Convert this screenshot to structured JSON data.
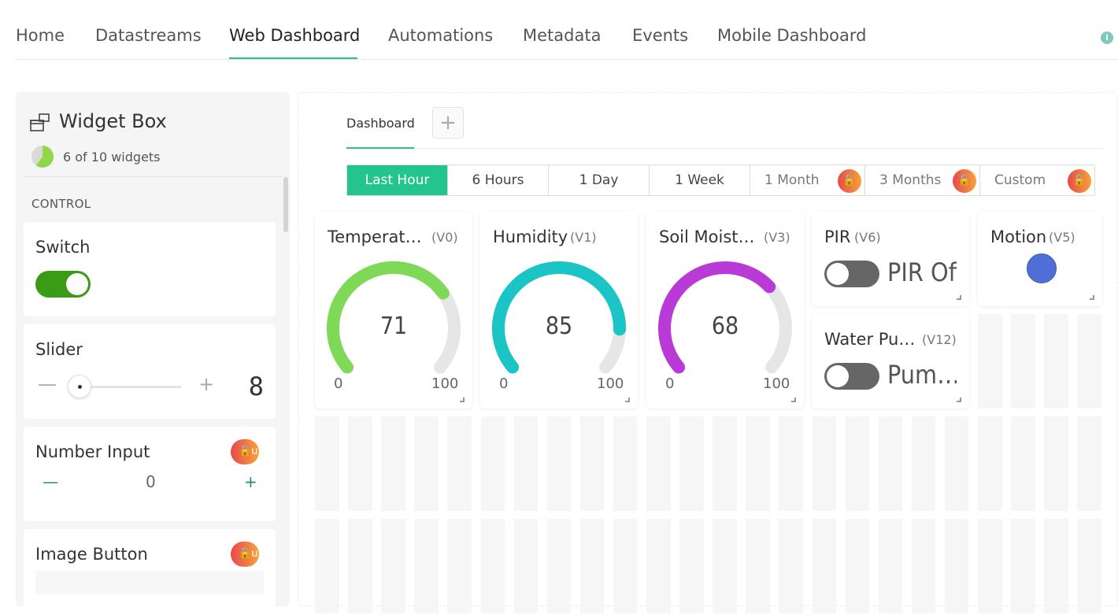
{
  "nav": {
    "tabs": [
      "Home",
      "Datastreams",
      "Web Dashboard",
      "Automations",
      "Metadata",
      "Events",
      "Mobile Dashboard"
    ],
    "active": "Web Dashboard",
    "info_icon": "info-icon"
  },
  "sidebar": {
    "title": "Widget Box",
    "count": "6 of 10 widgets",
    "section": "CONTROL",
    "widgets": {
      "switch": {
        "label": "Switch"
      },
      "slider": {
        "label": "Slider",
        "minus": "—",
        "plus": "+",
        "value": "8"
      },
      "number_input": {
        "label": "Number Input",
        "minus": "—",
        "value": "0",
        "plus": "+",
        "lock": "🔓u"
      },
      "image_button": {
        "label": "Image Button",
        "lock": "🔓u"
      }
    }
  },
  "dashboard": {
    "tab": "Dashboard",
    "add_tab": "+",
    "time_ranges": [
      {
        "label": "Last Hour",
        "active": true,
        "locked": false
      },
      {
        "label": "6 Hours",
        "active": false,
        "locked": false
      },
      {
        "label": "1 Day",
        "active": false,
        "locked": false
      },
      {
        "label": "1 Week",
        "active": false,
        "locked": false
      },
      {
        "label": "1 Month",
        "active": false,
        "locked": true
      },
      {
        "label": "3 Months",
        "active": false,
        "locked": true
      },
      {
        "label": "Custom",
        "active": false,
        "locked": true
      }
    ],
    "gauges": [
      {
        "title": "Temperat…",
        "pin": "(V0)",
        "value": 71,
        "min": "0",
        "max": "100",
        "color": "#7ed957"
      },
      {
        "title": "Humidity",
        "pin": "(V1)",
        "value": 85,
        "min": "0",
        "max": "100",
        "color": "#1bc5c5"
      },
      {
        "title": "Soil Moist…",
        "pin": "(V3)",
        "value": 68,
        "min": "0",
        "max": "100",
        "color": "#b93ad6"
      }
    ],
    "pir": {
      "title": "PIR",
      "pin": "(V6)",
      "state": "PIR Off"
    },
    "pump": {
      "title": "Water Pu…",
      "pin": "(V12)",
      "state": "Pum…"
    },
    "motion": {
      "title": "Motion",
      "pin": "(V5)",
      "led_color": "#4f6fd6"
    }
  }
}
